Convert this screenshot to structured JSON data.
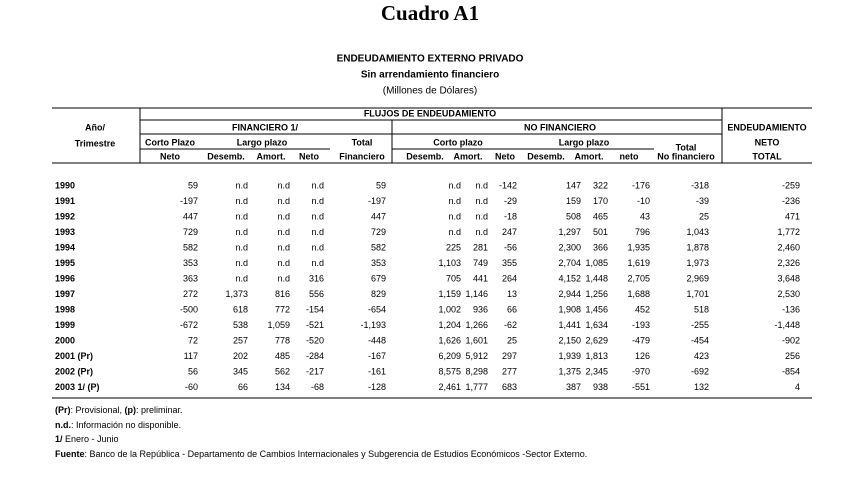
{
  "header": {
    "title": "Cuadro A1",
    "subtitle": "ENDEUDAMIENTO EXTERNO PRIVADO",
    "subtitle2": "Sin arrendamiento financiero",
    "units": "(Millones de Dólares)"
  },
  "table": {
    "group_header": "FLUJOS DE ENDEUDAMIENTO",
    "row_header": [
      "Año/",
      "Trimestre"
    ],
    "financiero": {
      "label": "FINANCIERO 1/",
      "corto": "Corto Plazo",
      "largo": "Largo plazo",
      "total": [
        "Total",
        "Financiero"
      ],
      "cols": [
        "Neto",
        "Desemb.",
        "Amort.",
        "Neto"
      ]
    },
    "no_financiero": {
      "label": "NO FINANCIERO",
      "corto": "Corto plazo",
      "largo": "Largo plazo",
      "total": [
        "Total",
        "No financiero"
      ],
      "cols": [
        "Desemb.",
        "Amort.",
        "Neto",
        "Desemb.",
        "Amort.",
        "neto"
      ]
    },
    "endeudamiento": [
      "ENDEUDAMIENTO",
      "NETO",
      "TOTAL"
    ],
    "rows": [
      [
        "1990",
        "59",
        "n.d",
        "n.d",
        "n.d",
        "59",
        "n.d",
        "n.d",
        "-142",
        "147",
        "322",
        "-176",
        "-318",
        "-259"
      ],
      [
        "1991",
        "-197",
        "n.d",
        "n.d",
        "n.d",
        "-197",
        "n.d",
        "n.d",
        "-29",
        "159",
        "170",
        "-10",
        "-39",
        "-236"
      ],
      [
        "1992",
        "447",
        "n.d",
        "n.d",
        "n.d",
        "447",
        "n.d",
        "n.d",
        "-18",
        "508",
        "465",
        "43",
        "25",
        "471"
      ],
      [
        "1993",
        "729",
        "n.d",
        "n.d",
        "n.d",
        "729",
        "n.d",
        "n.d",
        "247",
        "1,297",
        "501",
        "796",
        "1,043",
        "1,772"
      ],
      [
        "1994",
        "582",
        "n.d",
        "n.d",
        "n.d",
        "582",
        "225",
        "281",
        "-56",
        "2,300",
        "366",
        "1,935",
        "1,878",
        "2,460"
      ],
      [
        "1995",
        "353",
        "n.d",
        "n.d",
        "n.d",
        "353",
        "1,103",
        "749",
        "355",
        "2,704",
        "1,085",
        "1,619",
        "1,973",
        "2,326"
      ],
      [
        "1996",
        "363",
        "n.d",
        "n.d",
        "316",
        "679",
        "705",
        "441",
        "264",
        "4,152",
        "1,448",
        "2,705",
        "2,969",
        "3,648"
      ],
      [
        "1997",
        "272",
        "1,373",
        "816",
        "556",
        "829",
        "1,159",
        "1,146",
        "13",
        "2,944",
        "1,256",
        "1,688",
        "1,701",
        "2,530"
      ],
      [
        "1998",
        "-500",
        "618",
        "772",
        "-154",
        "-654",
        "1,002",
        "936",
        "66",
        "1,908",
        "1,456",
        "452",
        "518",
        "-136"
      ],
      [
        "1999",
        "-672",
        "538",
        "1,059",
        "-521",
        "-1,193",
        "1,204",
        "1,266",
        "-62",
        "1,441",
        "1,634",
        "-193",
        "-255",
        "-1,448"
      ],
      [
        "2000",
        "72",
        "257",
        "778",
        "-520",
        "-448",
        "1,626",
        "1,601",
        "25",
        "2,150",
        "2,629",
        "-479",
        "-454",
        "-902"
      ],
      [
        "2001 (Pr)",
        "117",
        "202",
        "485",
        "-284",
        "-167",
        "6,209",
        "5,912",
        "297",
        "1,939",
        "1,813",
        "126",
        "423",
        "256"
      ],
      [
        "2002 (Pr)",
        "56",
        "345",
        "562",
        "-217",
        "-161",
        "8,575",
        "8,298",
        "277",
        "1,375",
        "2,345",
        "-970",
        "-692",
        "-854"
      ],
      [
        "2003 1/ (P)",
        "-60",
        "66",
        "134",
        "-68",
        "-128",
        "2,461",
        "1,777",
        "683",
        "387",
        "938",
        "-551",
        "132",
        "4"
      ]
    ]
  },
  "notes": [
    {
      "parts": [
        "(Pr)",
        ": Provisional, ",
        "(p)",
        ": preliminar."
      ]
    },
    {
      "parts": [
        "n.d.",
        ":  Información no disponible."
      ]
    },
    {
      "parts": [
        "1/",
        "  Enero - Junio"
      ]
    },
    {
      "parts": [
        "Fuente",
        ":   Banco de la República - Departamento de Cambios Internacionales y  Subgerencia de Estudios Económicos -Sector Externo."
      ]
    }
  ]
}
